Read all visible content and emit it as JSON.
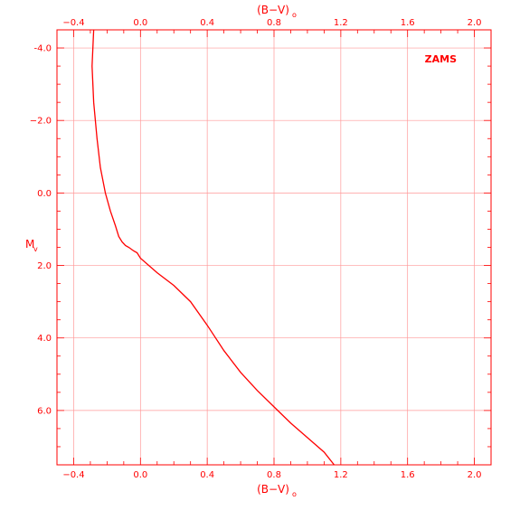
{
  "chart_data": {
    "type": "line",
    "title": "",
    "xlabel": "(B−V)",
    "xlabel_subscript": "o",
    "ylabel": "M",
    "ylabel_subscript": "v",
    "xlim": [
      -0.5,
      2.1
    ],
    "ylim": [
      7.5,
      -4.5
    ],
    "y_inverted": true,
    "grid": true,
    "x_ticks": [
      -0.4,
      0.0,
      0.4,
      0.8,
      1.2,
      1.6,
      2.0
    ],
    "x_tick_labels": [
      "−0.4",
      "0.0",
      "0.4",
      "0.8",
      "1.2",
      "1.6",
      "2.0"
    ],
    "y_ticks": [
      -4,
      -2,
      0,
      2,
      4,
      6
    ],
    "y_tick_labels": [
      "-4.0",
      "−2.0",
      "0.0",
      "2.0",
      "4.0",
      "6.0"
    ],
    "annotation": "ZAMS",
    "colors": {
      "line": "#ff0000",
      "grid": "#ff9999",
      "frame": "#ff0000"
    },
    "series": [
      {
        "name": "ZAMS",
        "x": [
          -0.28,
          -0.29,
          -0.28,
          -0.26,
          -0.24,
          -0.21,
          -0.18,
          -0.15,
          -0.13,
          -0.11,
          -0.09,
          -0.07,
          -0.04,
          -0.02,
          0.0,
          0.05,
          0.1,
          0.2,
          0.3,
          0.4,
          0.5,
          0.6,
          0.7,
          0.8,
          0.9,
          1.0,
          1.1,
          1.16
        ],
        "y": [
          -4.5,
          -3.5,
          -2.5,
          -1.5,
          -0.7,
          0.0,
          0.5,
          0.9,
          1.2,
          1.35,
          1.45,
          1.5,
          1.6,
          1.65,
          1.8,
          2.0,
          2.2,
          2.55,
          3.0,
          3.65,
          4.35,
          4.95,
          5.45,
          5.9,
          6.35,
          6.75,
          7.15,
          7.5
        ]
      }
    ]
  }
}
